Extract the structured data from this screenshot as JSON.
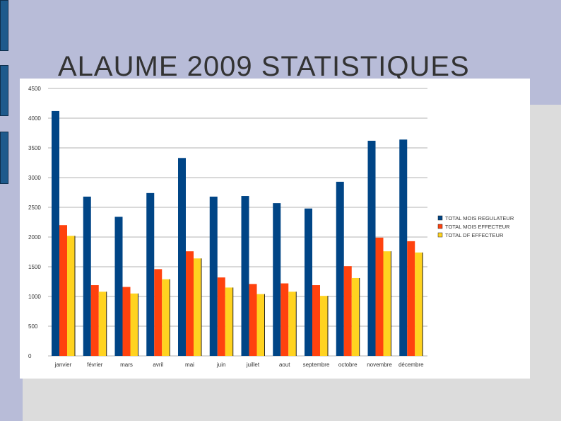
{
  "slide": {
    "title": "ALAUME 2009 STATISTIQUES"
  },
  "colors": {
    "series": [
      "#004586",
      "#ff420e",
      "#ffd320"
    ],
    "gridline": "#b3b3b3",
    "band": "#b8bcd8",
    "marker": "#1e5a8c"
  },
  "chart_data": {
    "type": "bar",
    "categories": [
      "janvier",
      "février",
      "mars",
      "avril",
      "mai",
      "juin",
      "juillet",
      "aout",
      "septembre",
      "octobre",
      "novembre",
      "décembre"
    ],
    "series": [
      {
        "name": "TOTAL MOIS REGULATEUR",
        "values": [
          4120,
          2680,
          2340,
          2740,
          3330,
          2680,
          2690,
          2570,
          2480,
          2930,
          3620,
          3640
        ]
      },
      {
        "name": "TOTAL MOIS EFFECTEUR",
        "values": [
          2200,
          1190,
          1160,
          1460,
          1760,
          1320,
          1210,
          1220,
          1190,
          1510,
          1990,
          1930
        ]
      },
      {
        "name": "TOTAL DF EFFECTEUR",
        "values": [
          2020,
          1080,
          1050,
          1290,
          1640,
          1150,
          1040,
          1080,
          1010,
          1310,
          1760,
          1740
        ]
      }
    ],
    "ylim": [
      0,
      4500
    ],
    "yticks": [
      0,
      500,
      1000,
      1500,
      2000,
      2500,
      3000,
      3500,
      4000,
      4500
    ],
    "grid": true,
    "legend": "right"
  }
}
